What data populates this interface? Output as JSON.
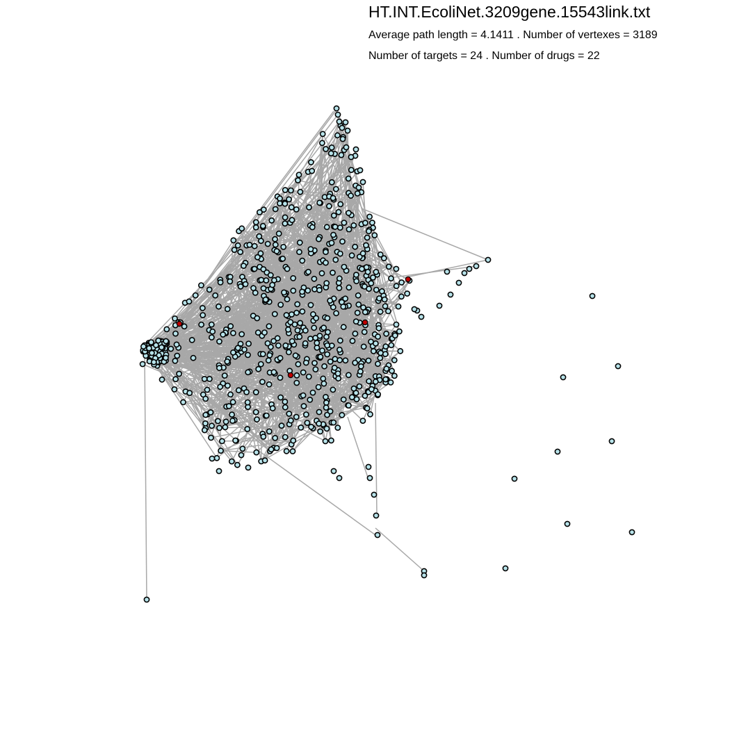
{
  "header": {
    "title": "HT.INT.EcoliNet.3209gene.15543link.txt",
    "stats_line1": "Average path length = 4.1411 . Number of vertexes = 3189",
    "stats_line2": "Number of targets = 24 . Number of drugs = 22"
  },
  "colors": {
    "background": "#ffffff",
    "edge": "#a8a8a8",
    "node_fill": "#b7e3ea",
    "node_stroke": "#000000",
    "target_node_fill": "#c00000"
  }
}
